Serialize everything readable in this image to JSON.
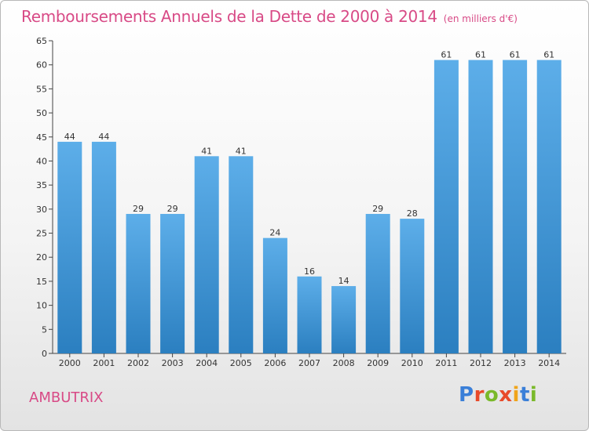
{
  "header": {
    "title": "Remboursements Annuels de la Dette de 2000 à 2014",
    "unit": "(en milliers d'€)"
  },
  "footer": {
    "commune": "AMBUTRIX",
    "logo_text": "Proxiti"
  },
  "colors": {
    "title": "#d84a86",
    "bar_top": "#5daee9",
    "bar_bottom": "#2b7fc0",
    "logo": [
      "#3a7fd8",
      "#e84a2a",
      "#7ab92a",
      "#e84a2a",
      "#f0a41a",
      "#3a7fd8",
      "#7ab92a"
    ]
  },
  "chart_data": {
    "type": "bar",
    "title": "Remboursements Annuels de la Dette de 2000 à 2014",
    "subtitle": "(en milliers d'€)",
    "xlabel": "",
    "ylabel": "",
    "categories": [
      "2000",
      "2001",
      "2002",
      "2003",
      "2004",
      "2005",
      "2006",
      "2007",
      "2008",
      "2009",
      "2010",
      "2011",
      "2012",
      "2013",
      "2014"
    ],
    "values": [
      44,
      44,
      29,
      29,
      41,
      41,
      24,
      16,
      14,
      29,
      28,
      61,
      61,
      61,
      61
    ],
    "ylim": [
      0,
      65
    ],
    "yticks": [
      0,
      5,
      10,
      15,
      20,
      25,
      30,
      35,
      40,
      45,
      50,
      55,
      60,
      65
    ],
    "grid": false,
    "data_labels": true
  }
}
